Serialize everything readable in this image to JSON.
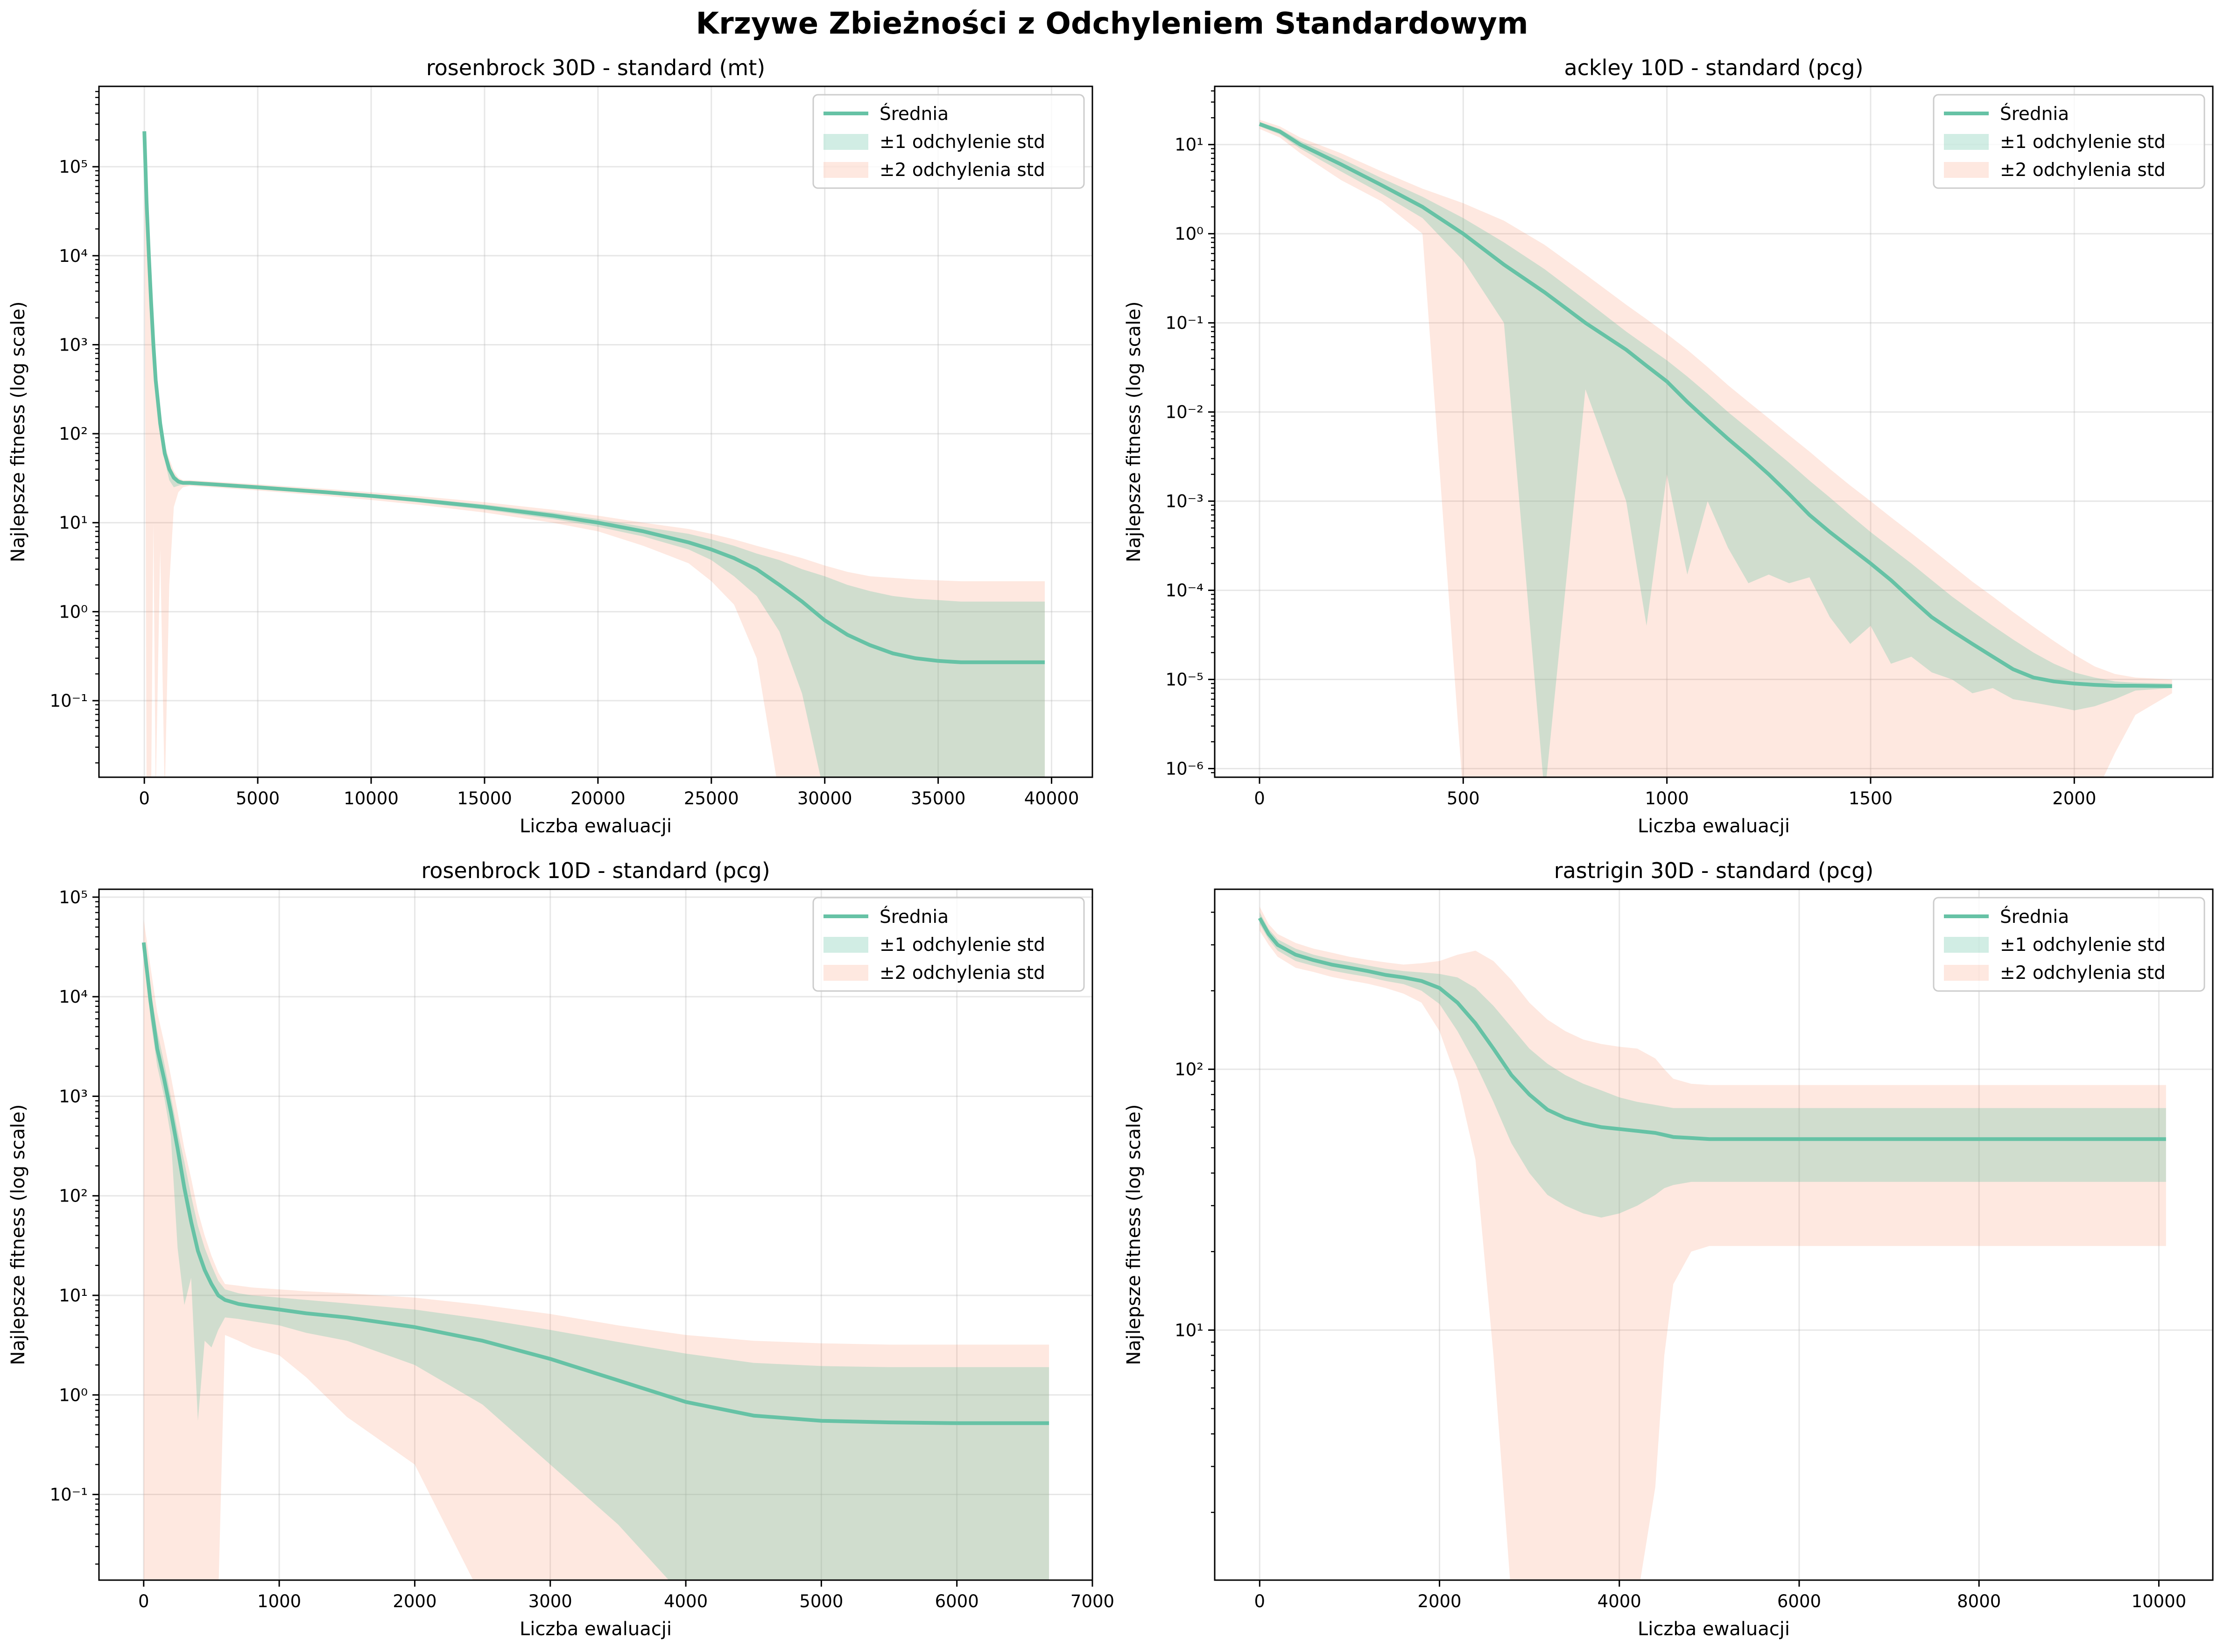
{
  "suptitle": "Krzywe Zbieżności z Odchyleniem Standardowym",
  "colors": {
    "mean": "#66c2a5",
    "std1": "#66c2a5",
    "std2": "#fc8d62"
  },
  "legend": [
    "Średnia",
    "±1 odchylenie std",
    "±2 odchylenia std"
  ],
  "chart_data": [
    {
      "type": "line",
      "title": "rosenbrock 30D - standard (mt)",
      "xlabel": "Liczba ewaluacji",
      "ylabel": "Najlepsze fitness (log scale)",
      "yscale": "log",
      "xlim": [
        -2000,
        41800
      ],
      "ylim": [
        0.0138,
        800000
      ],
      "xticks": [
        0,
        5000,
        10000,
        15000,
        20000,
        25000,
        30000,
        35000,
        40000
      ],
      "yticks": [
        0.1,
        1,
        10,
        100,
        1000,
        10000,
        100000
      ],
      "ytick_labels": [
        "10⁻¹",
        "10⁰",
        "10¹",
        "10²",
        "10³",
        "10⁴",
        "10⁵"
      ],
      "grid": true,
      "legend_position": "top-right",
      "x": [
        0,
        100,
        200,
        300,
        400,
        500,
        700,
        900,
        1100,
        1300,
        1500,
        1700,
        2000,
        3000,
        5000,
        8000,
        10000,
        12000,
        15000,
        18000,
        20000,
        22000,
        24000,
        25000,
        26000,
        27000,
        28000,
        29000,
        30000,
        31000,
        32000,
        33000,
        34000,
        35000,
        36000,
        37000,
        38000,
        39700
      ],
      "mean": [
        250000,
        40000,
        10000,
        3000,
        1000,
        400,
        130,
        60,
        40,
        32,
        29,
        28,
        28,
        27,
        25,
        22,
        20,
        18,
        15,
        12,
        10,
        8,
        6,
        5,
        4,
        3,
        2,
        1.3,
        0.8,
        0.55,
        0.42,
        0.34,
        0.3,
        0.28,
        0.27,
        0.27,
        0.27,
        0.27
      ],
      "std1_upper": [
        250000,
        42000,
        11000,
        3300,
        1100,
        450,
        145,
        68,
        45,
        35,
        31,
        29,
        29,
        28,
        26,
        23,
        21,
        19,
        16,
        13,
        11,
        9,
        7.5,
        6.5,
        5.5,
        4.5,
        3.8,
        3.0,
        2.5,
        2.0,
        1.7,
        1.5,
        1.4,
        1.35,
        1.3,
        1.3,
        1.3,
        1.3
      ],
      "std1_lower": [
        250000,
        38000,
        9000,
        2700,
        900,
        350,
        110,
        50,
        30,
        25,
        26,
        27,
        27,
        26,
        24,
        21,
        19,
        17,
        14,
        11,
        9,
        7,
        5,
        3.8,
        2.5,
        1.5,
        0.6,
        0.12,
        null,
        null,
        null,
        null,
        null,
        null,
        null,
        null,
        null,
        null
      ],
      "std2_upper": [
        250000,
        44000,
        12000,
        3600,
        1200,
        500,
        160,
        75,
        52,
        38,
        32,
        30,
        30,
        29,
        27,
        24,
        22,
        20,
        17,
        14,
        12,
        10,
        8.5,
        7.5,
        6.5,
        5.5,
        4.7,
        4.0,
        3.3,
        2.8,
        2.5,
        2.4,
        2.3,
        2.25,
        2.2,
        2.2,
        2.2,
        2.2
      ],
      "std2_lower": [
        250000,
        null,
        null,
        null,
        10,
        null,
        5,
        null,
        2,
        15,
        22,
        25,
        26,
        25,
        23,
        20,
        18,
        16,
        13,
        10,
        8,
        5.5,
        3.5,
        2.2,
        1.2,
        0.3,
        null,
        null,
        null,
        null,
        null,
        null,
        null,
        null,
        null,
        null,
        null,
        null
      ]
    },
    {
      "type": "line",
      "title": "ackley 10D - standard (pcg)",
      "xlabel": "Liczba ewaluacji",
      "ylabel": "Najlepsze fitness (log scale)",
      "yscale": "log",
      "xlim": [
        -110,
        2340
      ],
      "ylim": [
        8e-07,
        45
      ],
      "xticks": [
        0,
        500,
        1000,
        1500,
        2000
      ],
      "yticks": [
        1e-06,
        1e-05,
        0.0001,
        0.001,
        0.01,
        0.1,
        1,
        10
      ],
      "ytick_labels": [
        "10⁻⁶",
        "10⁻⁵",
        "10⁻⁴",
        "10⁻³",
        "10⁻²",
        "10⁻¹",
        "10⁰",
        "10¹"
      ],
      "grid": true,
      "legend_position": "top-right",
      "x": [
        0,
        50,
        100,
        200,
        300,
        400,
        500,
        600,
        700,
        800,
        900,
        950,
        1000,
        1050,
        1100,
        1150,
        1200,
        1250,
        1300,
        1350,
        1400,
        1450,
        1500,
        1550,
        1600,
        1650,
        1700,
        1750,
        1800,
        1850,
        1900,
        1950,
        2000,
        2050,
        2100,
        2150,
        2240
      ],
      "mean": [
        17,
        14,
        10,
        6,
        3.5,
        2,
        1,
        0.45,
        0.22,
        0.1,
        0.05,
        0.033,
        0.022,
        0.013,
        0.008,
        0.005,
        0.0032,
        0.002,
        0.0012,
        0.0007,
        0.00045,
        0.0003,
        0.0002,
        0.00013,
        8e-05,
        5e-05,
        3.5e-05,
        2.5e-05,
        1.8e-05,
        1.3e-05,
        1.05e-05,
        9.5e-06,
        9e-06,
        8.7e-06,
        8.5e-06,
        8.5e-06,
        8.4e-06
      ],
      "std1_upper": [
        18,
        15,
        11,
        7,
        4.2,
        2.6,
        1.5,
        0.8,
        0.4,
        0.18,
        0.08,
        0.055,
        0.038,
        0.025,
        0.016,
        0.01,
        0.0065,
        0.0042,
        0.0027,
        0.0017,
        0.0011,
        0.0007,
        0.00045,
        0.0003,
        0.0002,
        0.00013,
        8.5e-05,
        5.8e-05,
        4e-05,
        2.8e-05,
        2e-05,
        1.5e-05,
        1.2e-05,
        1.05e-05,
        9.5e-06,
        9.2e-06,
        9e-06
      ],
      "std1_lower": [
        16,
        13,
        9,
        5,
        2.8,
        1.5,
        0.5,
        0.1,
        null,
        0.018,
        0.001,
        4e-05,
        0.002,
        0.00015,
        0.001,
        0.0003,
        0.00012,
        0.00015,
        0.00012,
        0.00014,
        5e-05,
        2.5e-05,
        4e-05,
        1.5e-05,
        1.8e-05,
        1.2e-05,
        1e-05,
        7e-06,
        8e-06,
        6e-06,
        5.5e-06,
        5e-06,
        4.5e-06,
        5e-06,
        6e-06,
        7.5e-06,
        8e-06
      ],
      "std2_upper": [
        19,
        16,
        12,
        8,
        5,
        3.2,
        2.2,
        1.4,
        0.75,
        0.35,
        0.16,
        0.11,
        0.075,
        0.05,
        0.032,
        0.02,
        0.013,
        0.0085,
        0.0055,
        0.0036,
        0.0023,
        0.0015,
        0.001,
        0.00066,
        0.00044,
        0.00029,
        0.00019,
        0.000125,
        8.5e-05,
        5.7e-05,
        3.9e-05,
        2.7e-05,
        1.9e-05,
        1.4e-05,
        1.15e-05,
        1.05e-05,
        1e-05
      ],
      "std2_lower": [
        15,
        12,
        8,
        4,
        2.3,
        1.0,
        null,
        null,
        null,
        null,
        null,
        null,
        null,
        null,
        null,
        null,
        null,
        null,
        null,
        null,
        null,
        null,
        null,
        null,
        null,
        null,
        null,
        null,
        null,
        null,
        null,
        null,
        null,
        null,
        1.5e-06,
        4e-06,
        7e-06
      ]
    },
    {
      "type": "line",
      "title": "rosenbrock 10D - standard (pcg)",
      "xlabel": "Liczba ewaluacji",
      "ylabel": "Najlepsze fitness (log scale)",
      "yscale": "log",
      "xlim": [
        -330,
        7000
      ],
      "ylim": [
        0.0138,
        120000
      ],
      "xticks": [
        0,
        1000,
        2000,
        3000,
        4000,
        5000,
        6000,
        7000
      ],
      "yticks": [
        0.1,
        1,
        10,
        100,
        1000,
        10000,
        100000
      ],
      "ytick_labels": [
        "10⁻¹",
        "10⁰",
        "10¹",
        "10²",
        "10³",
        "10⁴",
        "10⁵"
      ],
      "grid": true,
      "legend_position": "top-right",
      "x": [
        0,
        50,
        100,
        150,
        200,
        250,
        300,
        350,
        400,
        450,
        500,
        550,
        600,
        700,
        800,
        1000,
        1200,
        1500,
        2000,
        2500,
        3000,
        3500,
        4000,
        4500,
        5000,
        5500,
        6000,
        6680
      ],
      "mean": [
        35000,
        9000,
        3000,
        1500,
        700,
        300,
        120,
        55,
        28,
        18,
        13,
        10,
        9,
        8.2,
        7.8,
        7.2,
        6.6,
        6.0,
        4.8,
        3.5,
        2.3,
        1.4,
        0.85,
        0.62,
        0.55,
        0.53,
        0.52,
        0.52
      ],
      "std1_upper": [
        36000,
        12000,
        4500,
        2200,
        1000,
        450,
        220,
        100,
        50,
        30,
        20,
        14,
        11.5,
        10.5,
        10,
        9.5,
        9.0,
        8.3,
        7.2,
        5.8,
        4.5,
        3.4,
        2.6,
        2.1,
        1.95,
        1.9,
        1.9,
        1.9
      ],
      "std1_lower": [
        34000,
        6000,
        2000,
        1000,
        400,
        30,
        8,
        15,
        0.55,
        3.5,
        3.0,
        4.5,
        6.0,
        5.8,
        5.5,
        5.0,
        4.2,
        3.5,
        2.0,
        0.8,
        0.2,
        0.05,
        null,
        null,
        null,
        null,
        null,
        null
      ],
      "std2_upper": [
        60000,
        20000,
        7000,
        3500,
        1600,
        700,
        300,
        150,
        70,
        40,
        25,
        17,
        13,
        12.5,
        12,
        11.5,
        11,
        10.5,
        9.5,
        8.0,
        6.5,
        5.0,
        4.0,
        3.5,
        3.3,
        3.2,
        3.2,
        3.2
      ],
      "std2_lower": [
        null,
        null,
        null,
        null,
        null,
        null,
        null,
        null,
        null,
        null,
        null,
        null,
        4.0,
        3.5,
        3.0,
        2.5,
        1.5,
        0.6,
        0.2,
        null,
        null,
        null,
        null,
        null,
        null,
        null,
        null,
        null
      ]
    },
    {
      "type": "line",
      "title": "rastrigin 30D - standard (pcg)",
      "xlabel": "Liczba ewaluacji",
      "ylabel": "Najlepsze fitness (log scale)",
      "yscale": "log",
      "xlim": [
        -500,
        10600
      ],
      "ylim": [
        1.1,
        490
      ],
      "xticks": [
        0,
        2000,
        4000,
        6000,
        8000,
        10000
      ],
      "yticks": [
        10,
        100
      ],
      "ytick_labels": [
        "10¹",
        "10²"
      ],
      "grid": true,
      "legend_position": "top-right",
      "x": [
        0,
        100,
        200,
        400,
        600,
        800,
        1000,
        1200,
        1400,
        1600,
        1800,
        2000,
        2200,
        2400,
        2600,
        2800,
        3000,
        3200,
        3400,
        3600,
        3800,
        4000,
        4200,
        4400,
        4500,
        4600,
        4800,
        5000,
        5500,
        6000,
        7000,
        8000,
        9000,
        10080
      ],
      "mean": [
        380,
        330,
        300,
        275,
        262,
        252,
        245,
        238,
        230,
        225,
        218,
        205,
        180,
        150,
        120,
        95,
        80,
        70,
        65,
        62,
        60,
        59,
        58,
        57,
        56,
        55,
        54.5,
        54,
        54,
        54,
        54,
        54,
        54,
        54
      ],
      "std1_upper": [
        400,
        345,
        315,
        290,
        275,
        265,
        258,
        250,
        243,
        238,
        235,
        232,
        225,
        205,
        175,
        145,
        120,
        105,
        95,
        88,
        83,
        78,
        75,
        73,
        72,
        71,
        71,
        71,
        71,
        71,
        71,
        71,
        71,
        71
      ],
      "std1_lower": [
        360,
        315,
        285,
        260,
        249,
        239,
        232,
        226,
        218,
        212,
        200,
        178,
        140,
        105,
        75,
        52,
        40,
        33,
        30,
        28,
        27,
        28,
        30,
        33,
        35,
        36,
        37,
        37,
        37,
        37,
        37,
        37,
        37,
        37
      ],
      "std2_upper": [
        420,
        360,
        330,
        305,
        290,
        280,
        270,
        263,
        257,
        252,
        255,
        260,
        275,
        285,
        260,
        220,
        180,
        155,
        140,
        130,
        125,
        122,
        120,
        110,
        100,
        92,
        88,
        87,
        87,
        87,
        87,
        87,
        87,
        87
      ],
      "std2_lower": [
        340,
        300,
        270,
        245,
        236,
        226,
        219,
        213,
        205,
        195,
        180,
        140,
        90,
        45,
        8,
        null,
        null,
        null,
        null,
        null,
        null,
        null,
        null,
        2.5,
        8,
        15,
        20,
        21,
        21,
        21,
        21,
        21,
        21,
        21
      ]
    }
  ]
}
